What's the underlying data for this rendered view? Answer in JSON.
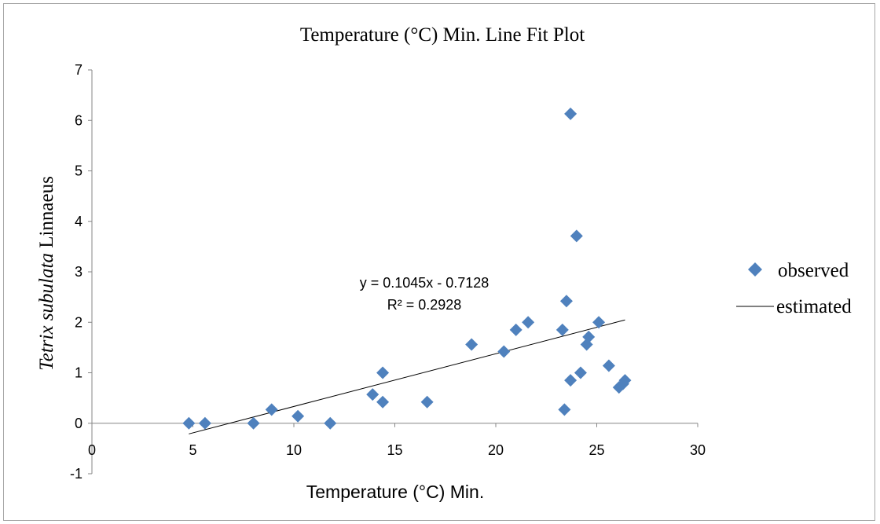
{
  "chart_data": {
    "type": "scatter",
    "title": "Temperature (°C) Min. Line Fit  Plot",
    "xlabel": "Temperature (°C) Min.",
    "ylabel_italic": "Tetrix subulata",
    "ylabel_rest": " Linnaeus",
    "xlim": [
      0,
      30
    ],
    "ylim": [
      -1,
      7
    ],
    "xticks": [
      "0",
      "5",
      "10",
      "15",
      "20",
      "25",
      "30"
    ],
    "yticks": [
      "-1",
      "0",
      "1",
      "2",
      "3",
      "4",
      "5",
      "6",
      "7"
    ],
    "grid": false,
    "legend_position": "right",
    "series": [
      {
        "name": "observed",
        "marker": "diamond",
        "color": "#4f81bd",
        "points": [
          [
            4.8,
            0.0
          ],
          [
            5.6,
            0.0
          ],
          [
            8.0,
            0.0
          ],
          [
            8.9,
            0.27
          ],
          [
            10.2,
            0.14
          ],
          [
            11.8,
            0.0
          ],
          [
            13.9,
            0.57
          ],
          [
            14.4,
            0.42
          ],
          [
            14.4,
            1.0
          ],
          [
            16.6,
            0.42
          ],
          [
            18.8,
            1.56
          ],
          [
            20.4,
            1.42
          ],
          [
            21.0,
            1.85
          ],
          [
            21.6,
            2.0
          ],
          [
            23.3,
            1.85
          ],
          [
            23.4,
            0.27
          ],
          [
            23.5,
            2.42
          ],
          [
            23.7,
            6.13
          ],
          [
            23.7,
            0.85
          ],
          [
            24.0,
            3.71
          ],
          [
            24.2,
            1.0
          ],
          [
            24.5,
            1.56
          ],
          [
            24.6,
            1.71
          ],
          [
            25.1,
            2.0
          ],
          [
            25.6,
            1.14
          ],
          [
            26.1,
            0.71
          ],
          [
            26.3,
            0.78
          ],
          [
            26.4,
            0.85
          ]
        ]
      },
      {
        "name": "estimated",
        "type": "line",
        "color": "#000000",
        "x_range": [
          4.8,
          26.4
        ],
        "slope": 0.1045,
        "intercept": -0.7128
      }
    ],
    "annotations": [
      {
        "text": "y = 0.1045x - 0.7128"
      },
      {
        "text": "R² = 0.2928"
      }
    ]
  }
}
